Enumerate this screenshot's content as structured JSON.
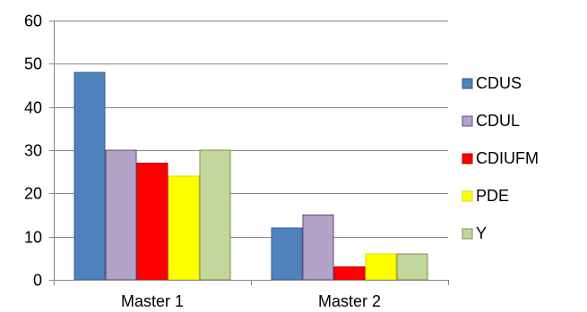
{
  "chart_data": {
    "type": "bar",
    "categories": [
      "Master 1",
      "Master 2"
    ],
    "series": [
      {
        "name": "CDUS",
        "values": [
          48,
          12
        ],
        "color": "#4F81BD",
        "stroke": "#385D8A"
      },
      {
        "name": "CDUL",
        "values": [
          30,
          15
        ],
        "color": "#B3A2C7",
        "stroke": "#604A7B"
      },
      {
        "name": "CDIUFM",
        "values": [
          27,
          3
        ],
        "color": "#FF0000",
        "stroke": "#C00000"
      },
      {
        "name": "PDE",
        "values": [
          24,
          6
        ],
        "color": "#FFFF00",
        "stroke": "#D9D900"
      },
      {
        "name": "Y",
        "values": [
          30,
          6
        ],
        "color": "#C3D69B",
        "stroke": "#76923C"
      }
    ],
    "ylim": [
      0,
      60
    ],
    "yticks": [
      0,
      10,
      20,
      30,
      40,
      50,
      60
    ],
    "grid": true,
    "legend_position": "right",
    "gridline_color": "#868686",
    "axis_color": "#868686"
  }
}
